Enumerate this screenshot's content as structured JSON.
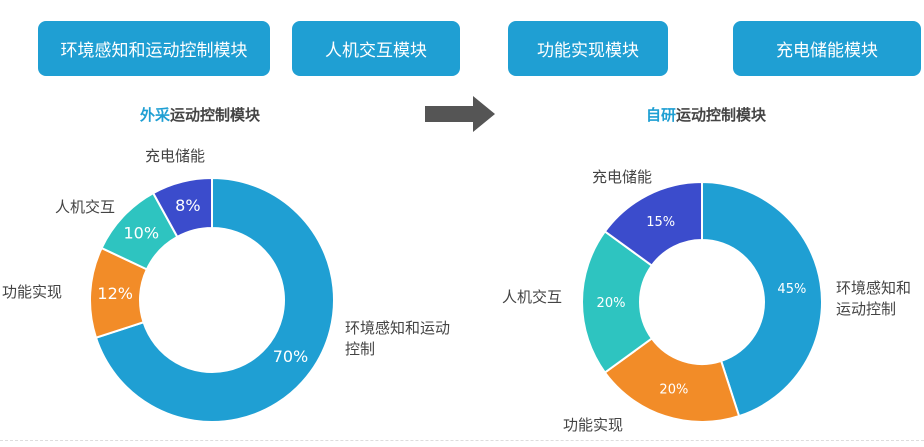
{
  "modules": [
    "环境感知和运动控制模块",
    "人机交互模块",
    "功能实现模块",
    "充电储能模块"
  ],
  "left": {
    "title_highlight": "外采",
    "title_rest": "运动控制模块"
  },
  "right": {
    "title_highlight": "自研",
    "title_rest": "运动控制模块"
  },
  "colors": {
    "blue": "#1f9fd3",
    "orange": "#f28c28",
    "teal": "#2ec4c0",
    "purple": "#3b4ccc",
    "arrow": "#555555"
  },
  "chart_data": [
    {
      "type": "pie",
      "donut": true,
      "title": "外采运动控制模块",
      "categories": [
        "环境感知和运动控制",
        "功能实现",
        "人机交互",
        "充电储能"
      ],
      "values": [
        70,
        12,
        10,
        8
      ],
      "labels": [
        "70%",
        "12%",
        "10%",
        "8%"
      ]
    },
    {
      "type": "pie",
      "donut": true,
      "title": "自研运动控制模块",
      "categories": [
        "环境感知和运动控制",
        "功能实现",
        "人机交互",
        "充电储能"
      ],
      "values": [
        45,
        20,
        20,
        15
      ],
      "labels": [
        "45%",
        "20%",
        "20%",
        "15%"
      ]
    }
  ]
}
